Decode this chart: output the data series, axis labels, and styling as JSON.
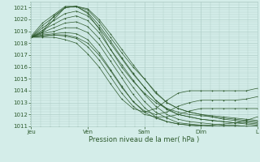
{
  "bg_color": "#d4ede9",
  "grid_color": "#b0cec8",
  "line_color": "#2d5a2d",
  "ylim": [
    1011,
    1021.5
  ],
  "ytick_vals": [
    1011,
    1012,
    1013,
    1014,
    1015,
    1016,
    1017,
    1018,
    1019,
    1020,
    1021
  ],
  "xlabel": "Pression niveau de la mer( hPa )",
  "xlabel_color": "#2d5a2d",
  "xtick_labels": [
    "Jeu",
    "Ven",
    "Sam",
    "Dim",
    "L"
  ],
  "xtick_positions": [
    0.0,
    0.25,
    0.5,
    0.75,
    1.0
  ],
  "lines": [
    [
      1018.5,
      1019.5,
      1020.2,
      1021.0,
      1021.1,
      1020.8,
      1019.8,
      1018.5,
      1017.2,
      1016.0,
      1015.0,
      1013.8,
      1013.0,
      1012.5,
      1012.2,
      1012.0,
      1011.8,
      1011.6,
      1011.5,
      1011.4,
      1011.3
    ],
    [
      1018.5,
      1019.3,
      1019.9,
      1020.5,
      1020.7,
      1020.3,
      1019.3,
      1018.0,
      1016.7,
      1015.4,
      1014.3,
      1013.2,
      1012.5,
      1012.0,
      1011.8,
      1011.6,
      1011.5,
      1011.4,
      1011.3,
      1011.2,
      1011.1
    ],
    [
      1018.5,
      1019.1,
      1019.6,
      1020.1,
      1020.3,
      1019.9,
      1018.9,
      1017.5,
      1016.2,
      1014.9,
      1013.7,
      1012.7,
      1012.0,
      1011.6,
      1011.4,
      1011.3,
      1011.2,
      1011.1,
      1011.1,
      1011.0,
      1011.0
    ],
    [
      1018.5,
      1018.9,
      1019.3,
      1019.7,
      1019.8,
      1019.4,
      1018.4,
      1017.0,
      1015.6,
      1014.3,
      1013.1,
      1012.2,
      1011.7,
      1011.3,
      1011.2,
      1011.1,
      1011.0,
      1011.0,
      1011.0,
      1011.0,
      1011.0
    ],
    [
      1018.5,
      1018.8,
      1019.0,
      1019.3,
      1019.3,
      1018.9,
      1017.9,
      1016.5,
      1015.1,
      1013.7,
      1012.6,
      1011.8,
      1011.4,
      1011.2,
      1011.1,
      1011.0,
      1011.0,
      1011.0,
      1011.0,
      1011.0,
      1011.0
    ],
    [
      1018.5,
      1018.7,
      1018.8,
      1018.9,
      1018.8,
      1018.3,
      1017.2,
      1015.8,
      1014.4,
      1013.1,
      1012.2,
      1011.7,
      1011.4,
      1011.2,
      1011.1,
      1011.1,
      1011.1,
      1011.2,
      1011.3,
      1011.5,
      1011.8
    ],
    [
      1018.5,
      1018.6,
      1018.7,
      1018.6,
      1018.4,
      1017.7,
      1016.6,
      1015.2,
      1013.8,
      1012.7,
      1012.0,
      1011.8,
      1011.8,
      1012.0,
      1012.3,
      1012.5,
      1012.5,
      1012.5,
      1012.5,
      1012.5,
      1012.5
    ],
    [
      1018.5,
      1018.5,
      1018.5,
      1018.3,
      1018.0,
      1017.1,
      1016.0,
      1014.6,
      1013.3,
      1012.5,
      1012.2,
      1012.5,
      1013.2,
      1013.8,
      1014.0,
      1014.0,
      1014.0,
      1014.0,
      1014.0,
      1014.0,
      1014.2
    ],
    [
      1018.5,
      1018.9,
      1020.0,
      1021.0,
      1021.1,
      1020.5,
      1019.2,
      1017.5,
      1016.0,
      1014.8,
      1013.8,
      1013.0,
      1012.5,
      1012.2,
      1012.0,
      1011.9,
      1011.8,
      1011.7,
      1011.6,
      1011.5,
      1011.4
    ],
    [
      1018.5,
      1019.0,
      1020.3,
      1021.0,
      1021.1,
      1020.6,
      1019.5,
      1018.2,
      1016.8,
      1015.5,
      1014.3,
      1013.2,
      1012.4,
      1012.0,
      1011.8,
      1011.6,
      1011.5,
      1011.4,
      1011.3,
      1011.3,
      1011.2
    ],
    [
      1018.6,
      1019.7,
      1020.4,
      1021.1,
      1021.1,
      1020.9,
      1020.0,
      1018.8,
      1017.5,
      1016.2,
      1015.0,
      1013.9,
      1013.0,
      1012.5,
      1012.2,
      1012.0,
      1011.9,
      1011.8,
      1011.7,
      1011.6,
      1011.5
    ],
    [
      1018.5,
      1018.6,
      1018.7,
      1018.7,
      1018.5,
      1018.0,
      1017.0,
      1015.7,
      1014.3,
      1013.1,
      1012.3,
      1012.0,
      1012.2,
      1012.7,
      1013.0,
      1013.2,
      1013.2,
      1013.2,
      1013.2,
      1013.3,
      1013.5
    ]
  ]
}
